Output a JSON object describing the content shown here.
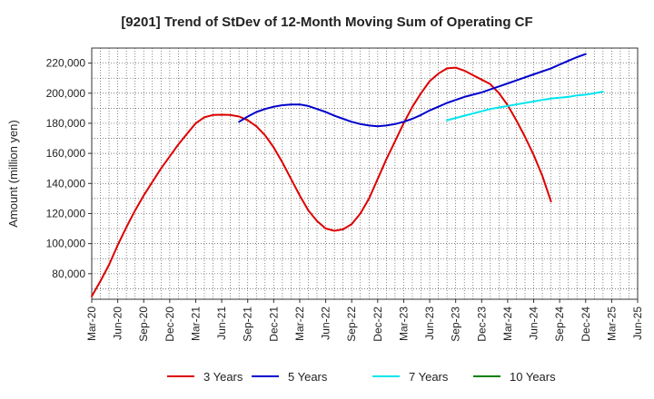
{
  "chart_data": {
    "type": "line",
    "title": "[9201]  Trend of StDev of 12-Month Moving Sum of Operating CF",
    "xlabel": "",
    "ylabel": "Amount (million yen)",
    "grid": true,
    "legend_position": "bottom",
    "x_ticks": [
      "Mar-20",
      "Jun-20",
      "Sep-20",
      "Dec-20",
      "Mar-21",
      "Jun-21",
      "Sep-21",
      "Dec-21",
      "Mar-22",
      "Jun-22",
      "Sep-22",
      "Dec-22",
      "Mar-23",
      "Jun-23",
      "Sep-23",
      "Dec-23",
      "Mar-24",
      "Jun-24",
      "Sep-24",
      "Dec-24",
      "Mar-25",
      "Jun-25"
    ],
    "y_ticks": [
      80000,
      100000,
      120000,
      140000,
      160000,
      180000,
      200000,
      220000
    ],
    "y_tick_labels": [
      "80,000",
      "100,000",
      "120,000",
      "140,000",
      "160,000",
      "180,000",
      "200,000",
      "220,000"
    ],
    "ylim": [
      63000,
      230000
    ],
    "series": [
      {
        "name": "3 Years",
        "color": "#dd0000",
        "start": "Mar-20",
        "values": [
          65000,
          75000,
          86000,
          99000,
          111000,
          122000,
          132000,
          141000,
          150000,
          158000,
          166000,
          173000,
          180000,
          184000,
          185500,
          185700,
          185500,
          184500,
          182000,
          178000,
          172000,
          164000,
          154000,
          143000,
          132000,
          122000,
          115000,
          110000,
          108500,
          109500,
          113000,
          120000,
          130000,
          143000,
          156000,
          168000,
          180000,
          191000,
          200000,
          208000,
          213000,
          216500,
          217000,
          215000,
          212000,
          209000,
          206000,
          200000,
          192000,
          182000,
          171000,
          159000,
          145000,
          128000
        ]
      },
      {
        "name": "5 Years",
        "color": "#0000cc",
        "start": "Aug-21",
        "values": [
          181000,
          184500,
          187500,
          189500,
          191000,
          192000,
          192500,
          192500,
          191500,
          189500,
          187500,
          185000,
          183000,
          181000,
          179500,
          178500,
          178000,
          178500,
          179500,
          181000,
          183000,
          185500,
          188500,
          191000,
          193500,
          195500,
          197500,
          199000,
          200500,
          202500,
          204500,
          206500,
          208500,
          210500,
          212500,
          214500,
          216500,
          219000,
          221500,
          224000,
          226000
        ]
      },
      {
        "name": "7 Years",
        "color": "#00e5ee",
        "start": "Aug-23",
        "values": [
          182000,
          183500,
          185000,
          186500,
          188000,
          189500,
          190500,
          191500,
          192500,
          193500,
          194500,
          195500,
          196500,
          197000,
          197500,
          198500,
          199000,
          200000,
          201000
        ]
      },
      {
        "name": "10 Years",
        "color": "#008000",
        "start": "",
        "values": []
      }
    ]
  }
}
